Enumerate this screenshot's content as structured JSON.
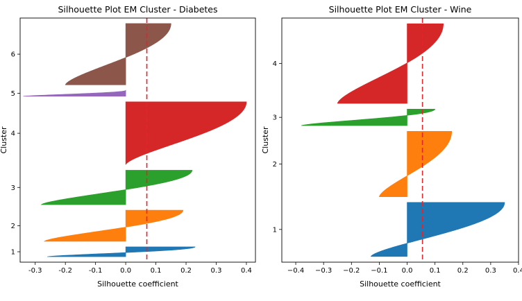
{
  "chart_data": [
    {
      "type": "area",
      "title": "Silhouette Plot EM Cluster - Diabetes",
      "xlabel": "Silhouette coefficient",
      "ylabel": "Cluster",
      "xlim": [
        -0.35,
        0.43
      ],
      "xticks": [
        -0.3,
        -0.2,
        -0.1,
        0.0,
        0.1,
        0.2,
        0.3,
        0.4
      ],
      "xtick_labels": [
        "-0.3",
        "-0.2",
        "-0.1",
        "0.0",
        "0.1",
        "0.2",
        "0.3",
        "0.4"
      ],
      "average_silhouette": 0.07,
      "grid": false,
      "clusters": [
        {
          "label": "1",
          "size": 18,
          "min": -0.26,
          "max": 0.23,
          "color": "#1f77b4"
        },
        {
          "label": "2",
          "size": 57,
          "min": -0.27,
          "max": 0.19,
          "color": "#ff7f0e"
        },
        {
          "label": "3",
          "size": 63,
          "min": -0.28,
          "max": 0.22,
          "color": "#2ca02c"
        },
        {
          "label": "4",
          "size": 115,
          "min": 0.0,
          "max": 0.4,
          "color": "#d62728"
        },
        {
          "label": "5",
          "size": 11,
          "min": -0.34,
          "max": 0.0,
          "color": "#9467bd"
        },
        {
          "label": "6",
          "size": 112,
          "min": -0.2,
          "max": 0.15,
          "color": "#8c564b"
        }
      ]
    },
    {
      "type": "area",
      "title": "Silhouette Plot EM Cluster - Wine",
      "xlabel": "Silhouette coefficient",
      "ylabel": "Cluster",
      "xlim": [
        -0.45,
        0.4
      ],
      "xticks": [
        -0.4,
        -0.3,
        -0.2,
        -0.1,
        0.0,
        0.1,
        0.2,
        0.3,
        0.4
      ],
      "xtick_labels": [
        "−0.4",
        "−0.3",
        "−0.2",
        "−0.1",
        "0.0",
        "0.1",
        "0.2",
        "0.3",
        "0.4"
      ],
      "average_silhouette": 0.055,
      "grid": false,
      "clusters": [
        {
          "label": "1",
          "size": 95,
          "min": -0.13,
          "max": 0.35,
          "color": "#1f77b4"
        },
        {
          "label": "2",
          "size": 115,
          "min": -0.1,
          "max": 0.16,
          "color": "#ff7f0e"
        },
        {
          "label": "3",
          "size": 29,
          "min": -0.38,
          "max": 0.1,
          "color": "#2ca02c"
        },
        {
          "label": "4",
          "size": 140,
          "min": -0.25,
          "max": 0.13,
          "color": "#d62728"
        }
      ]
    }
  ]
}
